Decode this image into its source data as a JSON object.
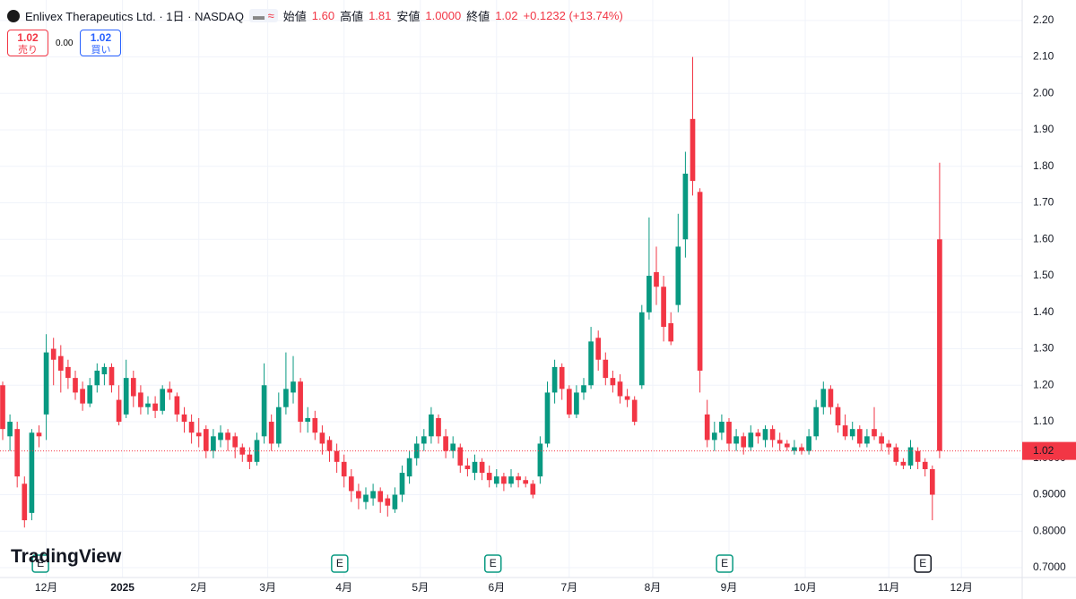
{
  "chart_data": {
    "type": "candlestick",
    "header": {
      "symbol": "Enlivex Therapeutics Ltd. · 1日 · NASDAQ",
      "open_label": "始値",
      "open": "1.60",
      "high_label": "高値",
      "high": "1.81",
      "low_label": "安値",
      "low": "1.0000",
      "close_label": "終値",
      "close": "1.02",
      "change": "+0.1232 (+13.74%)"
    },
    "trade": {
      "sell_price": "1.02",
      "sell_label": "売り",
      "spread": "0.00",
      "buy_price": "1.02",
      "buy_label": "買い"
    },
    "watermark": "TradingView",
    "up_color": "#089981",
    "down_color": "#f23645",
    "grid": true,
    "xlim": [
      -0.37,
      140.37
    ],
    "ylim": [
      0.673,
      2.256
    ],
    "xticks": [
      {
        "value": 6,
        "label": "12月"
      },
      {
        "value": 16.5,
        "label": "2025"
      },
      {
        "value": 27,
        "label": "2月"
      },
      {
        "value": 36.5,
        "label": "3月"
      },
      {
        "value": 47,
        "label": "4月"
      },
      {
        "value": 57.5,
        "label": "5月"
      },
      {
        "value": 68,
        "label": "6月"
      },
      {
        "value": 78,
        "label": "7月"
      },
      {
        "value": 89.5,
        "label": "8月"
      },
      {
        "value": 100,
        "label": "9月"
      },
      {
        "value": 110.5,
        "label": "10月"
      },
      {
        "value": 122,
        "label": "11月"
      },
      {
        "value": 132,
        "label": "12月"
      }
    ],
    "yticks": [
      {
        "value": 2.2,
        "label": "2.20"
      },
      {
        "value": 2.1,
        "label": "2.10"
      },
      {
        "value": 2.0,
        "label": "2.00"
      },
      {
        "value": 1.9,
        "label": "1.90"
      },
      {
        "value": 1.8,
        "label": "1.80"
      },
      {
        "value": 1.7,
        "label": "1.70"
      },
      {
        "value": 1.6,
        "label": "1.60"
      },
      {
        "value": 1.5,
        "label": "1.50"
      },
      {
        "value": 1.4,
        "label": "1.40"
      },
      {
        "value": 1.3,
        "label": "1.30"
      },
      {
        "value": 1.2,
        "label": "1.20"
      },
      {
        "value": 1.1,
        "label": "1.10"
      },
      {
        "value": 1.0,
        "label": "1.0000"
      },
      {
        "value": 0.9,
        "label": "0.9000"
      },
      {
        "value": 0.8,
        "label": "0.8000"
      },
      {
        "value": 0.7,
        "label": "0.7000"
      }
    ],
    "last_price": {
      "value": 1.02,
      "label": "1.02"
    },
    "events": [
      {
        "x": 5.2,
        "label": "E"
      },
      {
        "x": 46.4,
        "label": "E"
      },
      {
        "x": 67.5,
        "label": "E"
      },
      {
        "x": 99.4,
        "label": "E"
      },
      {
        "x": 126.7,
        "label": "E"
      }
    ],
    "open": [
      1.2,
      1.06,
      1.08,
      0.93,
      0.85,
      1.07,
      1.12,
      1.3,
      1.28,
      1.25,
      1.22,
      1.19,
      1.15,
      1.2,
      1.23,
      1.25,
      1.16,
      1.12,
      1.22,
      1.18,
      1.14,
      1.15,
      1.13,
      1.19,
      1.17,
      1.12,
      1.1,
      1.07,
      1.08,
      1.02,
      1.05,
      1.07,
      1.06,
      1.03,
      1.01,
      0.99,
      1.06,
      1.1,
      1.04,
      1.14,
      1.18,
      1.21,
      1.1,
      1.11,
      1.07,
      1.05,
      1.02,
      0.99,
      0.95,
      0.91,
      0.88,
      0.89,
      0.91,
      0.89,
      0.86,
      0.9,
      0.95,
      1.0,
      1.04,
      1.06,
      1.11,
      1.06,
      1.02,
      1.03,
      0.98,
      0.96,
      0.99,
      0.96,
      0.93,
      0.95,
      0.93,
      0.95,
      0.94,
      0.93,
      0.95,
      1.04,
      1.18,
      1.25,
      1.19,
      1.12,
      1.18,
      1.2,
      1.33,
      1.27,
      1.22,
      1.21,
      1.17,
      1.16,
      1.2,
      1.4,
      1.51,
      1.47,
      1.37,
      1.42,
      1.6,
      1.93,
      1.73,
      1.12,
      1.05,
      1.07,
      1.1,
      1.04,
      1.06,
      1.03,
      1.07,
      1.05,
      1.08,
      1.05,
      1.04,
      1.02,
      1.03,
      1.02,
      1.06,
      1.14,
      1.19,
      1.14,
      1.09,
      1.06,
      1.08,
      1.04,
      1.08,
      1.06,
      1.04,
      1.03,
      0.99,
      0.98,
      1.02,
      0.99,
      0.97,
      1.6
    ],
    "high": [
      1.21,
      1.12,
      1.1,
      0.95,
      1.08,
      1.09,
      1.34,
      1.33,
      1.31,
      1.27,
      1.24,
      1.21,
      1.22,
      1.26,
      1.26,
      1.26,
      1.2,
      1.27,
      1.24,
      1.2,
      1.17,
      1.17,
      1.2,
      1.21,
      1.18,
      1.14,
      1.12,
      1.11,
      1.09,
      1.08,
      1.09,
      1.08,
      1.07,
      1.04,
      1.03,
      1.07,
      1.26,
      1.12,
      1.18,
      1.29,
      1.28,
      1.22,
      1.14,
      1.13,
      1.09,
      1.06,
      1.04,
      1.01,
      0.97,
      0.93,
      0.92,
      0.93,
      0.92,
      0.9,
      0.92,
      0.98,
      1.02,
      1.06,
      1.08,
      1.14,
      1.12,
      1.08,
      1.06,
      1.04,
      1.0,
      1.01,
      1.0,
      0.98,
      0.97,
      0.96,
      0.97,
      0.96,
      0.95,
      0.94,
      1.06,
      1.21,
      1.27,
      1.26,
      1.2,
      1.2,
      1.22,
      1.36,
      1.35,
      1.29,
      1.24,
      1.23,
      1.19,
      1.17,
      1.42,
      1.66,
      1.58,
      1.5,
      1.4,
      1.67,
      1.84,
      2.1,
      1.74,
      1.16,
      1.1,
      1.12,
      1.11,
      1.08,
      1.07,
      1.09,
      1.08,
      1.09,
      1.09,
      1.07,
      1.05,
      1.05,
      1.04,
      1.08,
      1.16,
      1.21,
      1.2,
      1.15,
      1.12,
      1.1,
      1.09,
      1.08,
      1.14,
      1.07,
      1.05,
      1.04,
      1.0,
      1.05,
      1.03,
      1.0,
      0.98,
      1.81
    ],
    "low": [
      1.05,
      1.02,
      0.92,
      0.81,
      0.83,
      1.03,
      1.05,
      1.2,
      1.18,
      1.19,
      1.16,
      1.13,
      1.14,
      1.18,
      1.2,
      1.18,
      1.09,
      1.11,
      1.14,
      1.12,
      1.12,
      1.11,
      1.12,
      1.16,
      1.1,
      1.07,
      1.04,
      1.03,
      1.0,
      1.0,
      1.03,
      1.02,
      1.0,
      0.99,
      0.97,
      0.98,
      1.04,
      1.02,
      1.03,
      1.12,
      1.15,
      1.07,
      1.07,
      1.05,
      1.01,
      0.99,
      0.96,
      0.92,
      0.88,
      0.86,
      0.86,
      0.87,
      0.85,
      0.84,
      0.85,
      0.88,
      0.93,
      0.98,
      1.02,
      1.04,
      1.04,
      1.0,
      1.0,
      0.96,
      0.95,
      0.94,
      0.94,
      0.92,
      0.92,
      0.91,
      0.92,
      0.92,
      0.92,
      0.89,
      0.93,
      1.03,
      1.15,
      1.16,
      1.11,
      1.11,
      1.16,
      1.19,
      1.24,
      1.2,
      1.18,
      1.15,
      1.14,
      1.09,
      1.19,
      1.38,
      1.42,
      1.32,
      1.31,
      1.4,
      1.55,
      1.72,
      1.18,
      1.03,
      1.02,
      1.05,
      1.02,
      1.02,
      1.01,
      1.02,
      1.04,
      1.03,
      1.03,
      1.02,
      1.02,
      1.01,
      1.01,
      1.01,
      1.05,
      1.12,
      1.12,
      1.07,
      1.05,
      1.05,
      1.03,
      1.03,
      1.05,
      1.02,
      1.01,
      0.98,
      0.97,
      0.97,
      0.97,
      0.95,
      0.83,
      1.0
    ],
    "close": [
      1.08,
      1.1,
      0.95,
      0.83,
      1.07,
      1.06,
      1.29,
      1.27,
      1.24,
      1.22,
      1.18,
      1.15,
      1.2,
      1.24,
      1.25,
      1.2,
      1.1,
      1.22,
      1.17,
      1.14,
      1.15,
      1.13,
      1.19,
      1.18,
      1.12,
      1.1,
      1.07,
      1.06,
      1.02,
      1.06,
      1.07,
      1.05,
      1.03,
      1.01,
      0.99,
      1.05,
      1.2,
      1.04,
      1.14,
      1.19,
      1.21,
      1.1,
      1.11,
      1.07,
      1.04,
      1.02,
      0.99,
      0.95,
      0.91,
      0.89,
      0.9,
      0.91,
      0.88,
      0.87,
      0.9,
      0.96,
      1.0,
      1.04,
      1.06,
      1.12,
      1.06,
      1.02,
      1.04,
      0.98,
      0.97,
      0.99,
      0.96,
      0.94,
      0.95,
      0.93,
      0.95,
      0.94,
      0.93,
      0.9,
      1.04,
      1.18,
      1.25,
      1.19,
      1.12,
      1.18,
      1.2,
      1.32,
      1.27,
      1.22,
      1.2,
      1.17,
      1.16,
      1.1,
      1.4,
      1.5,
      1.47,
      1.36,
      1.32,
      1.58,
      1.78,
      1.76,
      1.24,
      1.05,
      1.07,
      1.1,
      1.04,
      1.06,
      1.03,
      1.07,
      1.06,
      1.08,
      1.05,
      1.04,
      1.03,
      1.03,
      1.02,
      1.06,
      1.14,
      1.19,
      1.14,
      1.09,
      1.06,
      1.08,
      1.04,
      1.06,
      1.06,
      1.04,
      1.03,
      0.99,
      0.98,
      1.03,
      0.99,
      0.97,
      0.9,
      1.02
    ]
  }
}
